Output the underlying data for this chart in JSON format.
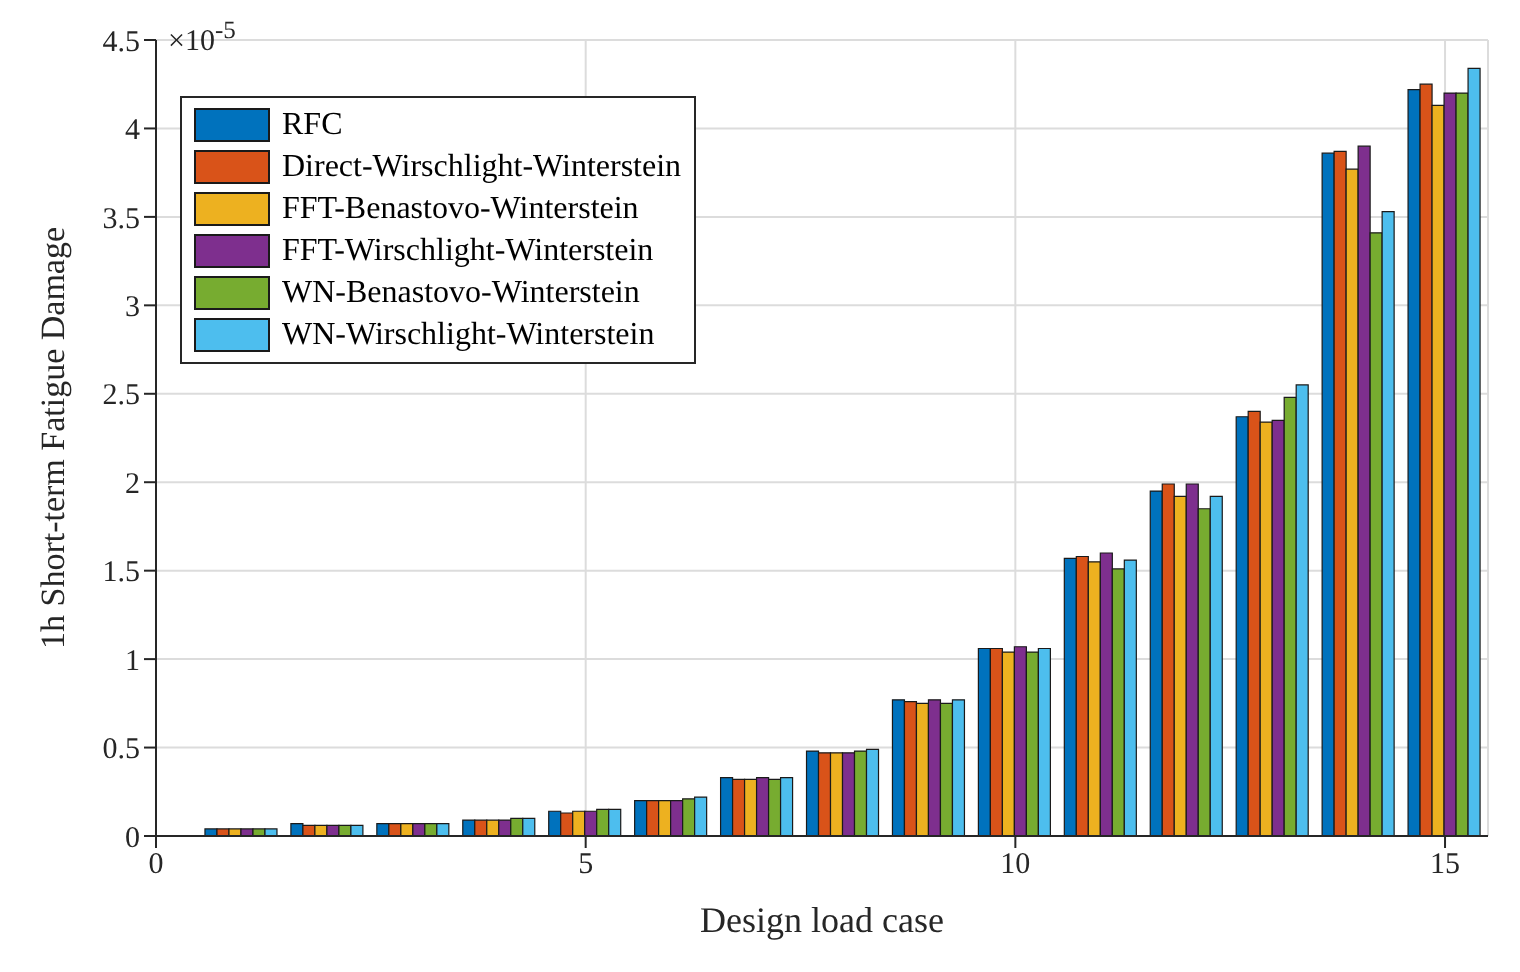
{
  "chart_data": {
    "type": "bar",
    "xlabel": "Design load case",
    "ylabel": "1h Short-term Fatigue Damage",
    "annotations": [
      "×10$^{-5}$"
    ],
    "x": [
      1,
      2,
      3,
      4,
      5,
      6,
      7,
      8,
      9,
      10,
      11,
      12,
      13,
      14,
      15
    ],
    "series": [
      {
        "name": "RFC",
        "color": "#0072bd",
        "values": [
          0.04,
          0.07,
          0.07,
          0.09,
          0.14,
          0.2,
          0.33,
          0.48,
          0.77,
          1.06,
          1.57,
          1.95,
          2.37,
          3.86,
          4.22
        ]
      },
      {
        "name": "Direct-Wirschlight-Winterstein",
        "color": "#d95319",
        "values": [
          0.04,
          0.06,
          0.07,
          0.09,
          0.13,
          0.2,
          0.32,
          0.47,
          0.76,
          1.06,
          1.58,
          1.99,
          2.4,
          3.87,
          4.25
        ]
      },
      {
        "name": "FFT-Benastovo-Winterstein",
        "color": "#edb120",
        "values": [
          0.04,
          0.06,
          0.07,
          0.09,
          0.14,
          0.2,
          0.32,
          0.47,
          0.75,
          1.04,
          1.55,
          1.92,
          2.34,
          3.77,
          4.13
        ]
      },
      {
        "name": "FFT-Wirschlight-Winterstein",
        "color": "#7e2f8e",
        "values": [
          0.04,
          0.06,
          0.07,
          0.09,
          0.14,
          0.2,
          0.33,
          0.47,
          0.77,
          1.07,
          1.6,
          1.99,
          2.35,
          3.9,
          4.2
        ]
      },
      {
        "name": "WN-Benastovo-Winterstein",
        "color": "#77ac30",
        "values": [
          0.04,
          0.06,
          0.07,
          0.1,
          0.15,
          0.21,
          0.32,
          0.48,
          0.75,
          1.04,
          1.51,
          1.85,
          2.48,
          3.41,
          4.2
        ]
      },
      {
        "name": "WN-Wirschlight-Winterstein",
        "color": "#4dbeee",
        "values": [
          0.04,
          0.06,
          0.07,
          0.1,
          0.15,
          0.22,
          0.33,
          0.49,
          0.77,
          1.06,
          1.56,
          1.92,
          2.55,
          3.53,
          4.34
        ]
      }
    ],
    "xlim": [
      0,
      15.5
    ],
    "xticks": [
      0,
      5,
      10,
      15
    ],
    "ylim": [
      0,
      4.5
    ],
    "yticks": [
      0,
      0.5,
      1,
      1.5,
      2,
      2.5,
      3,
      3.5,
      4,
      4.5
    ],
    "grid": true,
    "legend": "top left"
  }
}
